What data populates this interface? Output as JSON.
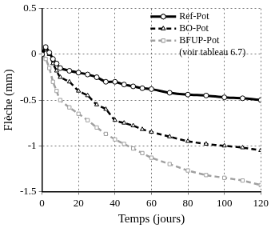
{
  "chart_data": {
    "type": "line",
    "x_label": "Temps (jours)",
    "y_label": "Flèche (mm)",
    "x": [
      0,
      2,
      4,
      6,
      8,
      10,
      15,
      20,
      25,
      30,
      35,
      40,
      45,
      50,
      55,
      60,
      70,
      80,
      90,
      100,
      110,
      120
    ],
    "series": [
      {
        "name": "Ref-Pot",
        "color": "#000000",
        "marker": "circle",
        "line_style": "solid",
        "values": [
          0,
          0.08,
          0.02,
          -0.05,
          -0.1,
          -0.15,
          -0.18,
          -0.2,
          -0.22,
          -0.25,
          -0.3,
          -0.3,
          -0.33,
          -0.35,
          -0.37,
          -0.38,
          -0.42,
          -0.44,
          -0.45,
          -0.47,
          -0.48,
          -0.5
        ]
      },
      {
        "name": "BO-Pot",
        "color": "#000000",
        "marker": "triangle",
        "line_style": "dashed",
        "values": [
          0,
          0.05,
          0,
          -0.1,
          -0.18,
          -0.25,
          -0.3,
          -0.4,
          -0.45,
          -0.55,
          -0.6,
          -0.72,
          -0.75,
          -0.78,
          -0.82,
          -0.85,
          -0.9,
          -0.95,
          -0.98,
          -1.0,
          -1.02,
          -1.05
        ]
      },
      {
        "name": "BFUP-Pot",
        "color": "#a0a0a0",
        "marker": "rect",
        "line_style": "dashed",
        "values": [
          0,
          -0.05,
          -0.15,
          -0.3,
          -0.4,
          -0.5,
          -0.58,
          -0.65,
          -0.72,
          -0.8,
          -0.87,
          -0.93,
          -0.98,
          -1.03,
          -1.08,
          -1.13,
          -1.2,
          -1.27,
          -1.32,
          -1.35,
          -1.38,
          -1.43
        ]
      }
    ],
    "annotations": [
      "(voir tableau 6.7)"
    ],
    "xlim": [
      0,
      120
    ],
    "xticks": [
      0,
      20,
      40,
      60,
      80,
      100,
      120
    ],
    "ylim": [
      -1.5,
      0.5
    ],
    "yticks": [
      -1.5,
      -1,
      -0.5,
      0,
      0.5
    ],
    "grid": true,
    "legend": "upper right"
  }
}
